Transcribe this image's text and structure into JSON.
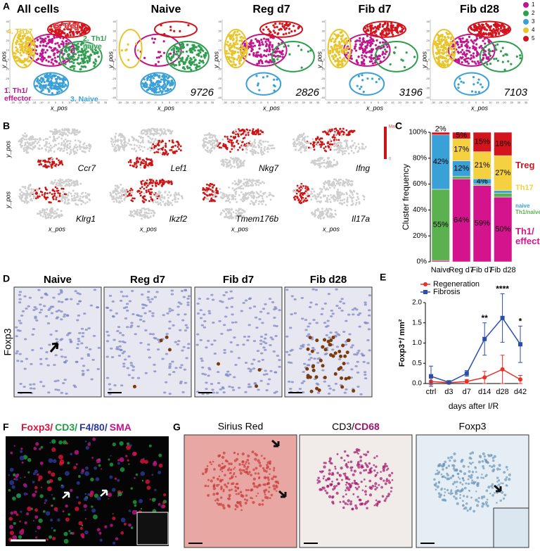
{
  "figure": {
    "A": {
      "label": "A",
      "panels": [
        "All cells",
        "Naive",
        "Reg d7",
        "Fib d7",
        "Fib d28"
      ],
      "counts": [
        "9726",
        "2826",
        "3196",
        "7103"
      ],
      "cluster_labels": [
        "4. Th17",
        "5. Treg",
        "2. Th1/ naive",
        "1. Th1/ effector",
        "3. Naive"
      ],
      "x_label": "x_pos",
      "y_label": "y_pos",
      "xticks": [
        "-30",
        "-25",
        "-20",
        "-15",
        "-10",
        "-5",
        "0",
        "5",
        "10",
        "15",
        "20",
        "25",
        "30",
        "35"
      ],
      "yticks": [
        "40",
        "30",
        "20",
        "10",
        "0",
        "-10",
        "-20",
        "-30",
        "-40"
      ],
      "legend": [
        "1",
        "2",
        "3",
        "4",
        "5"
      ],
      "legend_colors": [
        "#c0158f",
        "#2e9e4f",
        "#3aa0d8",
        "#e8c52a",
        "#d4141c"
      ]
    },
    "B": {
      "label": "B",
      "genes": [
        "Ccr7",
        "Lef1",
        "Nkg7",
        "Ifng",
        "Klrg1",
        "Ikzf2",
        "Tmem176b",
        "Il17a"
      ],
      "x_label": "x_pos",
      "y_label": "y_pos",
      "scale": [
        "Max",
        "0"
      ]
    },
    "C": {
      "label": "C"
    },
    "D": {
      "label": "D",
      "panels": [
        "Naive",
        "Reg d7",
        "Fib d7",
        "Fib d28"
      ],
      "row_label": "Foxp3"
    },
    "E": {
      "label": "E"
    },
    "F": {
      "label": "F",
      "title_parts": [
        "Foxp3/",
        "CD3/",
        "F4/80/",
        "SMA"
      ],
      "title_colors": [
        "#e0123a",
        "#1f9e3f",
        "#2b3a9a",
        "#c0158f"
      ]
    },
    "G": {
      "label": "G",
      "panels": [
        "Sirius Red",
        "CD3/",
        "CD68",
        "Foxp3"
      ]
    }
  },
  "chart_data": [
    {
      "type": "bar",
      "stacked": true,
      "y_label": "Cluster frequency",
      "categories": [
        "Naive",
        "Reg d7",
        "Fib d7",
        "Fib d28"
      ],
      "ylim": [
        0,
        100
      ],
      "yticks": [
        {
          "value": 0,
          "label": "0%"
        },
        {
          "value": 20,
          "label": "20%"
        },
        {
          "value": 40,
          "label": "40%"
        },
        {
          "value": 60,
          "label": "60%"
        },
        {
          "value": 80,
          "label": "80%"
        },
        {
          "value": 100,
          "label": "100%"
        }
      ],
      "series": [
        {
          "name": "Th1/ effector",
          "color": "#d4148c",
          "values": [
            1,
            64,
            59,
            50
          ],
          "value_labels": [
            null,
            "64%",
            "59%",
            "50%"
          ]
        },
        {
          "name": "Th1/naive",
          "color": "#5bb04f",
          "values": [
            55,
            2,
            1,
            3
          ],
          "value_labels": [
            "55%",
            null,
            null,
            null
          ]
        },
        {
          "name": "naive",
          "color": "#3aa0d8",
          "values": [
            42,
            12,
            4,
            2
          ],
          "value_labels": [
            "42%",
            "12%",
            "4%",
            null
          ]
        },
        {
          "name": "Th17",
          "color": "#f5d040",
          "values": [
            0,
            17,
            21,
            27
          ],
          "value_labels": [
            null,
            "17%",
            "21%",
            "27%"
          ]
        },
        {
          "name": "Treg",
          "color": "#d4141c",
          "values": [
            2,
            5,
            15,
            18
          ],
          "value_labels": [
            "2%",
            "5%",
            "15%",
            "18%"
          ]
        }
      ]
    },
    {
      "type": "line",
      "x_label": "days after I/R",
      "y_label": "Foxp3⁺/ mm²",
      "categories": [
        "ctrl",
        "d3",
        "d7",
        "d14",
        "d28",
        "d42"
      ],
      "ylim": [
        0,
        2.0
      ],
      "yticks": [
        {
          "value": 0,
          "label": "0.0"
        },
        {
          "value": 0.5,
          "label": "0.5"
        },
        {
          "value": 1.0,
          "label": "1.0"
        },
        {
          "value": 1.5,
          "label": "1.5"
        },
        {
          "value": 2.0,
          "label": "2.0"
        }
      ],
      "series": [
        {
          "name": "Regeneration",
          "color": "#e8312a",
          "marker": "circle",
          "values": [
            0.05,
            0.02,
            0.05,
            0.15,
            0.35,
            0.1
          ],
          "errors": [
            0.08,
            0.02,
            0.05,
            0.15,
            0.35,
            0.1
          ]
        },
        {
          "name": "Fibrosis",
          "color": "#2b4fa8",
          "marker": "square",
          "values": [
            0.18,
            0.03,
            0.25,
            1.1,
            1.62,
            0.97
          ],
          "errors": [
            0.25,
            0.02,
            0.07,
            0.4,
            0.6,
            0.45
          ]
        }
      ],
      "annotations": [
        {
          "text": "**",
          "x": "d14"
        },
        {
          "text": "****",
          "x": "d28"
        },
        {
          "text": "*",
          "x": "d42"
        }
      ]
    }
  ]
}
